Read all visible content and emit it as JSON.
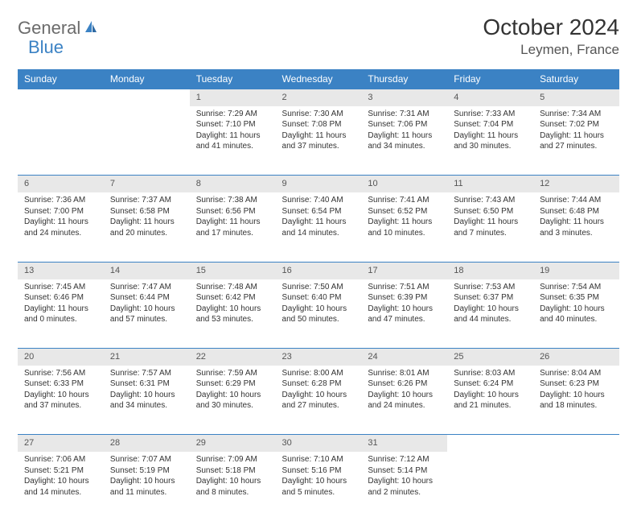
{
  "logo": {
    "text1": "General",
    "text2": "Blue"
  },
  "title": "October 2024",
  "location": "Leymen, France",
  "colors": {
    "header_bg": "#3b82c4",
    "header_text": "#ffffff",
    "daynum_bg": "#e8e8e8",
    "row_border": "#3b82c4",
    "body_bg": "#ffffff",
    "text": "#333333"
  },
  "fonts": {
    "title_size_pt": 21,
    "location_size_pt": 13,
    "weekday_size_pt": 9,
    "daynum_size_pt": 8,
    "cell_size_pt": 7.5
  },
  "weekdays": [
    "Sunday",
    "Monday",
    "Tuesday",
    "Wednesday",
    "Thursday",
    "Friday",
    "Saturday"
  ],
  "weeks": [
    [
      null,
      null,
      {
        "n": "1",
        "sr": "Sunrise: 7:29 AM",
        "ss": "Sunset: 7:10 PM",
        "dl": "Daylight: 11 hours and 41 minutes."
      },
      {
        "n": "2",
        "sr": "Sunrise: 7:30 AM",
        "ss": "Sunset: 7:08 PM",
        "dl": "Daylight: 11 hours and 37 minutes."
      },
      {
        "n": "3",
        "sr": "Sunrise: 7:31 AM",
        "ss": "Sunset: 7:06 PM",
        "dl": "Daylight: 11 hours and 34 minutes."
      },
      {
        "n": "4",
        "sr": "Sunrise: 7:33 AM",
        "ss": "Sunset: 7:04 PM",
        "dl": "Daylight: 11 hours and 30 minutes."
      },
      {
        "n": "5",
        "sr": "Sunrise: 7:34 AM",
        "ss": "Sunset: 7:02 PM",
        "dl": "Daylight: 11 hours and 27 minutes."
      }
    ],
    [
      {
        "n": "6",
        "sr": "Sunrise: 7:36 AM",
        "ss": "Sunset: 7:00 PM",
        "dl": "Daylight: 11 hours and 24 minutes."
      },
      {
        "n": "7",
        "sr": "Sunrise: 7:37 AM",
        "ss": "Sunset: 6:58 PM",
        "dl": "Daylight: 11 hours and 20 minutes."
      },
      {
        "n": "8",
        "sr": "Sunrise: 7:38 AM",
        "ss": "Sunset: 6:56 PM",
        "dl": "Daylight: 11 hours and 17 minutes."
      },
      {
        "n": "9",
        "sr": "Sunrise: 7:40 AM",
        "ss": "Sunset: 6:54 PM",
        "dl": "Daylight: 11 hours and 14 minutes."
      },
      {
        "n": "10",
        "sr": "Sunrise: 7:41 AM",
        "ss": "Sunset: 6:52 PM",
        "dl": "Daylight: 11 hours and 10 minutes."
      },
      {
        "n": "11",
        "sr": "Sunrise: 7:43 AM",
        "ss": "Sunset: 6:50 PM",
        "dl": "Daylight: 11 hours and 7 minutes."
      },
      {
        "n": "12",
        "sr": "Sunrise: 7:44 AM",
        "ss": "Sunset: 6:48 PM",
        "dl": "Daylight: 11 hours and 3 minutes."
      }
    ],
    [
      {
        "n": "13",
        "sr": "Sunrise: 7:45 AM",
        "ss": "Sunset: 6:46 PM",
        "dl": "Daylight: 11 hours and 0 minutes."
      },
      {
        "n": "14",
        "sr": "Sunrise: 7:47 AM",
        "ss": "Sunset: 6:44 PM",
        "dl": "Daylight: 10 hours and 57 minutes."
      },
      {
        "n": "15",
        "sr": "Sunrise: 7:48 AM",
        "ss": "Sunset: 6:42 PM",
        "dl": "Daylight: 10 hours and 53 minutes."
      },
      {
        "n": "16",
        "sr": "Sunrise: 7:50 AM",
        "ss": "Sunset: 6:40 PM",
        "dl": "Daylight: 10 hours and 50 minutes."
      },
      {
        "n": "17",
        "sr": "Sunrise: 7:51 AM",
        "ss": "Sunset: 6:39 PM",
        "dl": "Daylight: 10 hours and 47 minutes."
      },
      {
        "n": "18",
        "sr": "Sunrise: 7:53 AM",
        "ss": "Sunset: 6:37 PM",
        "dl": "Daylight: 10 hours and 44 minutes."
      },
      {
        "n": "19",
        "sr": "Sunrise: 7:54 AM",
        "ss": "Sunset: 6:35 PM",
        "dl": "Daylight: 10 hours and 40 minutes."
      }
    ],
    [
      {
        "n": "20",
        "sr": "Sunrise: 7:56 AM",
        "ss": "Sunset: 6:33 PM",
        "dl": "Daylight: 10 hours and 37 minutes."
      },
      {
        "n": "21",
        "sr": "Sunrise: 7:57 AM",
        "ss": "Sunset: 6:31 PM",
        "dl": "Daylight: 10 hours and 34 minutes."
      },
      {
        "n": "22",
        "sr": "Sunrise: 7:59 AM",
        "ss": "Sunset: 6:29 PM",
        "dl": "Daylight: 10 hours and 30 minutes."
      },
      {
        "n": "23",
        "sr": "Sunrise: 8:00 AM",
        "ss": "Sunset: 6:28 PM",
        "dl": "Daylight: 10 hours and 27 minutes."
      },
      {
        "n": "24",
        "sr": "Sunrise: 8:01 AM",
        "ss": "Sunset: 6:26 PM",
        "dl": "Daylight: 10 hours and 24 minutes."
      },
      {
        "n": "25",
        "sr": "Sunrise: 8:03 AM",
        "ss": "Sunset: 6:24 PM",
        "dl": "Daylight: 10 hours and 21 minutes."
      },
      {
        "n": "26",
        "sr": "Sunrise: 8:04 AM",
        "ss": "Sunset: 6:23 PM",
        "dl": "Daylight: 10 hours and 18 minutes."
      }
    ],
    [
      {
        "n": "27",
        "sr": "Sunrise: 7:06 AM",
        "ss": "Sunset: 5:21 PM",
        "dl": "Daylight: 10 hours and 14 minutes."
      },
      {
        "n": "28",
        "sr": "Sunrise: 7:07 AM",
        "ss": "Sunset: 5:19 PM",
        "dl": "Daylight: 10 hours and 11 minutes."
      },
      {
        "n": "29",
        "sr": "Sunrise: 7:09 AM",
        "ss": "Sunset: 5:18 PM",
        "dl": "Daylight: 10 hours and 8 minutes."
      },
      {
        "n": "30",
        "sr": "Sunrise: 7:10 AM",
        "ss": "Sunset: 5:16 PM",
        "dl": "Daylight: 10 hours and 5 minutes."
      },
      {
        "n": "31",
        "sr": "Sunrise: 7:12 AM",
        "ss": "Sunset: 5:14 PM",
        "dl": "Daylight: 10 hours and 2 minutes."
      },
      null,
      null
    ]
  ]
}
